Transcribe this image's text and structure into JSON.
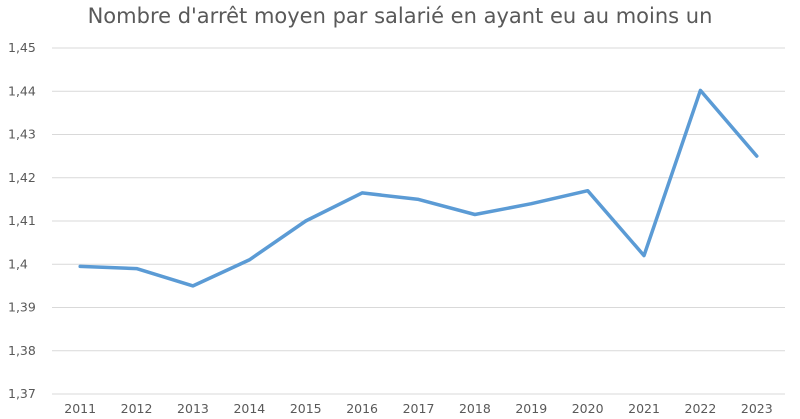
{
  "chart_data": {
    "type": "line",
    "title": "Nombre d'arrêt moyen par salarié en ayant eu au moins un",
    "xlabel": "",
    "ylabel": "",
    "categories": [
      "2011",
      "2012",
      "2013",
      "2014",
      "2015",
      "2016",
      "2017",
      "2018",
      "2019",
      "2020",
      "2021",
      "2022",
      "2023"
    ],
    "series": [
      {
        "values": [
          1.3995,
          1.399,
          1.395,
          1.401,
          1.41,
          1.4165,
          1.415,
          1.4115,
          1.414,
          1.417,
          1.402,
          1.4402,
          1.425
        ]
      }
    ],
    "ylim": [
      1.37,
      1.45
    ],
    "yticks": [
      1.37,
      1.38,
      1.39,
      1.4,
      1.41,
      1.42,
      1.43,
      1.44,
      1.45
    ],
    "ytick_labels": [
      "1,37",
      "1,38",
      "1,39",
      "1,4",
      "1,41",
      "1,42",
      "1,43",
      "1,44",
      "1,45"
    ],
    "grid": true,
    "legend": "none",
    "colors": {
      "line": "#5b9bd5",
      "grid": "#d9d9d9",
      "text": "#595959"
    }
  }
}
